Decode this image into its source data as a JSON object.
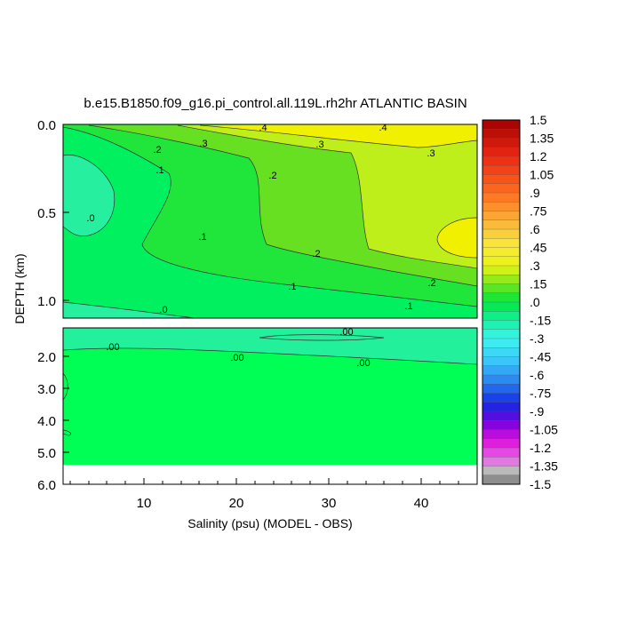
{
  "chart_data": {
    "type": "contour",
    "title": "b.e15.B1850.f09_g16.pi_control.all.119L.rh2hr ATLANTIC BASIN",
    "xlabel": "Salinity (psu) (MODEL - OBS)",
    "ylabel": "DEPTH (km)",
    "x_ticks": [
      "10",
      "20",
      "30",
      "40"
    ],
    "x_range": [
      1,
      46
    ],
    "upper_panel": {
      "y_range": [
        0.0,
        1.1
      ],
      "y_ticks": [
        "0.0",
        "0.5",
        "1.0"
      ]
    },
    "lower_panel": {
      "y_range": [
        1.2,
        6.0
      ],
      "y_ticks": [
        "2.0",
        "3.0",
        "4.0",
        "5.0",
        "6.0"
      ]
    },
    "contour_labels_upper": [
      ".4",
      ".4",
      ".3",
      ".3",
      ".3",
      ".2",
      ".2",
      ".2",
      ".2",
      ".1",
      ".1",
      ".1",
      ".1",
      ".0",
      ".0"
    ],
    "contour_labels_lower": [
      ".00",
      ".00",
      ".00",
      ".00"
    ],
    "colorbar": {
      "labels": [
        "1.5",
        "1.35",
        "1.2",
        "1.05",
        ".9",
        ".75",
        ".6",
        ".45",
        ".3",
        ".15",
        ".0",
        "-.15",
        "-.3",
        "-.45",
        "-.6",
        "-.75",
        "-.9",
        "-1.05",
        "-1.2",
        "-1.35",
        "-1.5"
      ]
    }
  }
}
